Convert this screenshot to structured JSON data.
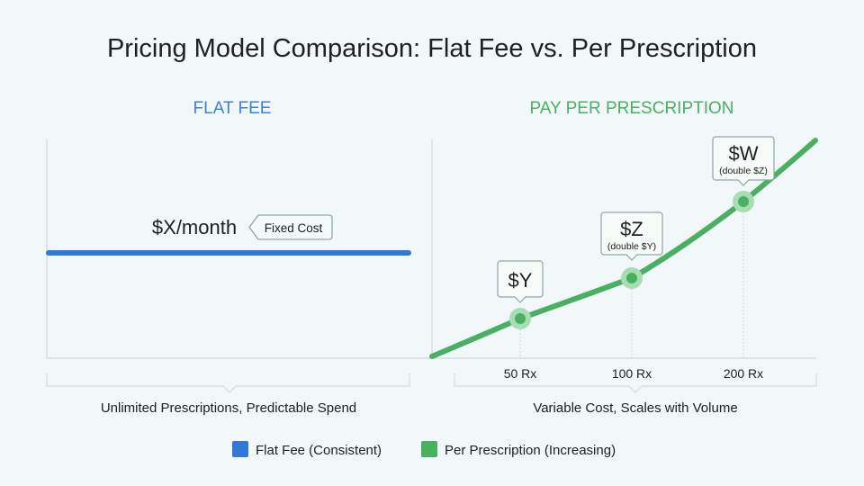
{
  "title": "Pricing Model Comparison: Flat Fee vs. Per Prescription",
  "colors": {
    "flat": "#3378d6",
    "per": "#48b060",
    "per_light": "#a8dcb2",
    "axis": "#d6dde2",
    "text": "#202124"
  },
  "flat_panel": {
    "heading": "FLAT FEE",
    "price_label": "$X/month",
    "tag": "Fixed Cost",
    "caption": "Unlimited Prescriptions, Predictable Spend"
  },
  "per_panel": {
    "heading": "PAY PER PRESCRIPTION",
    "caption": "Variable Cost, Scales with Volume"
  },
  "chart_data": {
    "type": "line",
    "categories": [
      "50 Rx",
      "100 Rx",
      "200 Rx"
    ],
    "points": [
      {
        "category": "50 Rx",
        "label": "$Y",
        "note": ""
      },
      {
        "category": "100 Rx",
        "label": "$Z",
        "note": "(double $Y)"
      },
      {
        "category": "200 Rx",
        "label": "$W",
        "note": "(double $Z)"
      }
    ],
    "grid": false
  },
  "legend": [
    {
      "label": "Flat Fee (Consistent)",
      "color": "#3378d6"
    },
    {
      "label": "Per Prescription (Increasing)",
      "color": "#48b060"
    }
  ]
}
